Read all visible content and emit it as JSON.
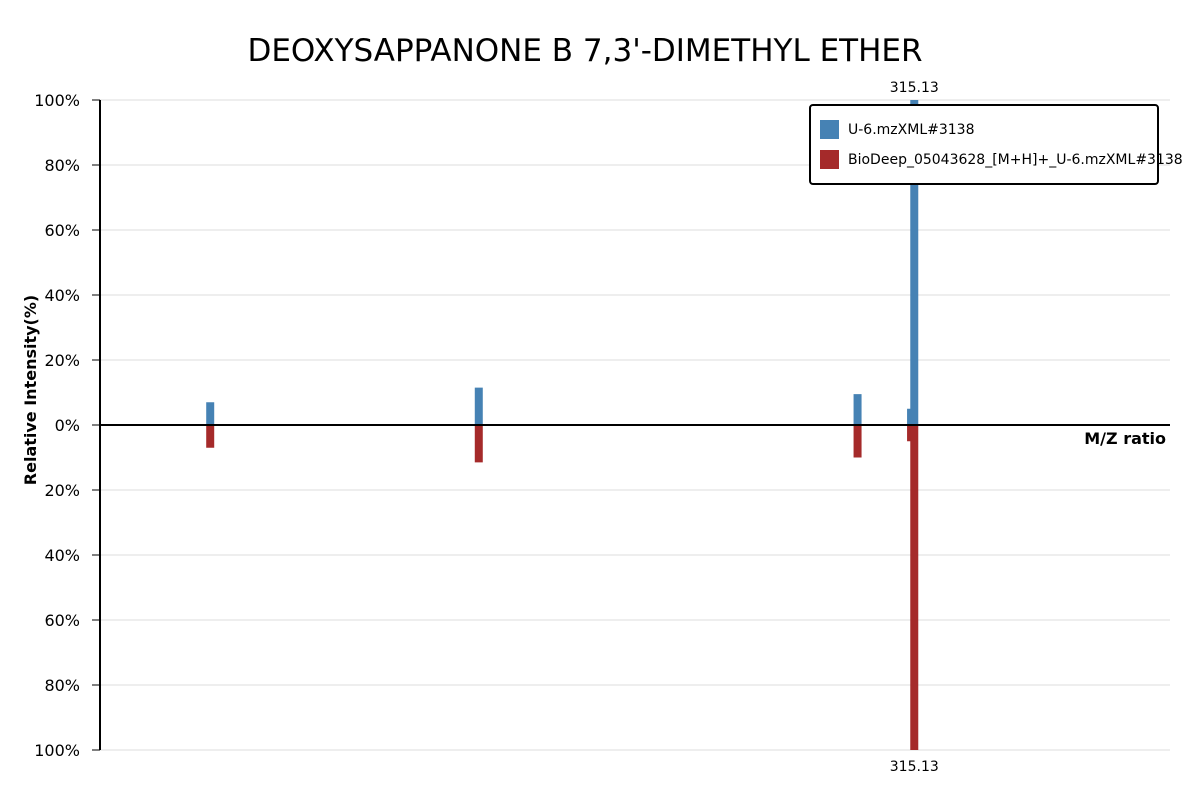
{
  "chart_data": {
    "type": "bar",
    "title": "DEOXYSAPPANONE B 7,3'-DIMETHYL ETHER",
    "xlabel": "M/Z ratio",
    "ylabel": "Relative Intensity(%)",
    "ylim": [
      -100,
      100
    ],
    "y_ticks": [
      100,
      80,
      60,
      40,
      20,
      0,
      -20,
      -40,
      -60,
      -80,
      -100
    ],
    "y_tick_labels": [
      "100%",
      "80%",
      "60%",
      "40%",
      "20%",
      "0%",
      "20%",
      "40%",
      "60%",
      "80%",
      "100%"
    ],
    "grid": true,
    "legend_position": "top-right",
    "series": [
      {
        "name": "U-6.mzXML#3138",
        "color": "#4682b4",
        "direction": "up",
        "peaks": [
          {
            "mz_fraction": 0.103,
            "intensity": 7
          },
          {
            "mz_fraction": 0.354,
            "intensity": 11.5
          },
          {
            "mz_fraction": 0.708,
            "intensity": 9.5
          },
          {
            "mz_fraction": 0.758,
            "intensity": 5
          },
          {
            "mz_fraction": 0.761,
            "intensity": 100,
            "label": "315.13"
          }
        ]
      },
      {
        "name": "BioDeep_05043628_[M+H]+_U-6.mzXML#3138",
        "color": "#a52a2a",
        "direction": "down",
        "peaks": [
          {
            "mz_fraction": 0.103,
            "intensity": 7
          },
          {
            "mz_fraction": 0.354,
            "intensity": 11.5
          },
          {
            "mz_fraction": 0.708,
            "intensity": 10
          },
          {
            "mz_fraction": 0.758,
            "intensity": 5
          },
          {
            "mz_fraction": 0.761,
            "intensity": 100,
            "label": "315.13"
          }
        ]
      }
    ]
  }
}
